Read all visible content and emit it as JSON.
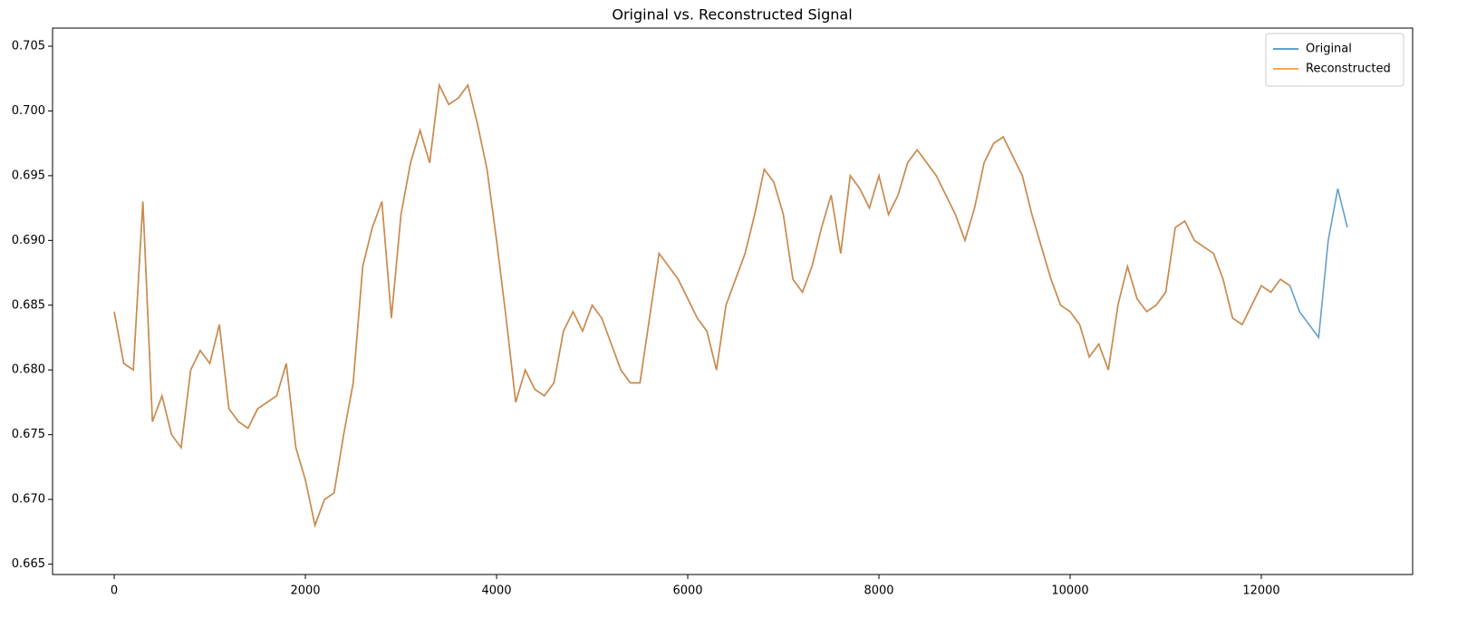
{
  "chart_data": {
    "type": "line",
    "title": "Original vs. Reconstructed Signal",
    "x": [
      0,
      100,
      200,
      300,
      400,
      500,
      600,
      700,
      800,
      900,
      1000,
      1100,
      1200,
      1300,
      1400,
      1500,
      1600,
      1700,
      1800,
      1900,
      2000,
      2100,
      2200,
      2300,
      2400,
      2500,
      2600,
      2700,
      2800,
      2900,
      3000,
      3100,
      3200,
      3300,
      3400,
      3500,
      3600,
      3700,
      3800,
      3900,
      4000,
      4100,
      4200,
      4300,
      4400,
      4500,
      4600,
      4700,
      4800,
      4900,
      5000,
      5100,
      5200,
      5300,
      5400,
      5500,
      5600,
      5700,
      5800,
      5900,
      6000,
      6100,
      6200,
      6300,
      6400,
      6500,
      6600,
      6700,
      6800,
      6900,
      7000,
      7100,
      7200,
      7300,
      7400,
      7500,
      7600,
      7700,
      7800,
      7900,
      8000,
      8100,
      8200,
      8300,
      8400,
      8500,
      8600,
      8700,
      8800,
      8900,
      9000,
      9100,
      9200,
      9300,
      9400,
      9500,
      9600,
      9700,
      9800,
      9900,
      10000,
      10100,
      10200,
      10300,
      10400,
      10500,
      10600,
      10700,
      10800,
      10900,
      11000,
      11100,
      11200,
      11300,
      11400,
      11500,
      11600,
      11700,
      11800,
      11900,
      12000,
      12100,
      12200,
      12300,
      12400,
      12500,
      12600,
      12700,
      12800,
      12900
    ],
    "series": [
      {
        "name": "Original",
        "color": "#1f77b4",
        "values": [
          0.6845,
          0.6805,
          0.68,
          0.693,
          0.676,
          0.678,
          0.675,
          0.674,
          0.68,
          0.6815,
          0.6805,
          0.6835,
          0.677,
          0.676,
          0.6755,
          0.677,
          0.6775,
          0.678,
          0.6805,
          0.674,
          0.6715,
          0.668,
          0.67,
          0.6705,
          0.675,
          0.679,
          0.688,
          0.691,
          0.693,
          0.684,
          0.692,
          0.696,
          0.6985,
          0.696,
          0.702,
          0.7005,
          0.701,
          0.702,
          0.699,
          0.6955,
          0.69,
          0.684,
          0.6775,
          0.68,
          0.6785,
          0.678,
          0.679,
          0.683,
          0.6845,
          0.683,
          0.685,
          0.684,
          0.682,
          0.68,
          0.679,
          0.679,
          0.684,
          0.689,
          0.688,
          0.687,
          0.6855,
          0.684,
          0.683,
          0.68,
          0.685,
          0.687,
          0.689,
          0.692,
          0.6955,
          0.6945,
          0.692,
          0.687,
          0.686,
          0.688,
          0.691,
          0.6935,
          0.689,
          0.695,
          0.694,
          0.6925,
          0.695,
          0.692,
          0.6935,
          0.696,
          0.697,
          0.696,
          0.695,
          0.6935,
          0.692,
          0.69,
          0.6925,
          0.696,
          0.6975,
          0.698,
          0.6965,
          0.695,
          0.692,
          0.6895,
          0.687,
          0.685,
          0.6845,
          0.6835,
          0.681,
          0.682,
          0.68,
          0.685,
          0.688,
          0.6855,
          0.6845,
          0.685,
          0.686,
          0.691,
          0.6915,
          0.69,
          0.6895,
          0.689,
          0.687,
          0.684,
          0.6835,
          0.685,
          0.6865,
          0.686,
          0.687,
          0.6865,
          0.6845,
          0.6835,
          0.6825,
          0.69,
          0.694,
          0.691
        ]
      },
      {
        "name": "Reconstructed",
        "color": "#ff7f0e",
        "values": [
          0.6845,
          0.6805,
          0.68,
          0.693,
          0.676,
          0.678,
          0.675,
          0.674,
          0.68,
          0.6815,
          0.6805,
          0.6835,
          0.677,
          0.676,
          0.6755,
          0.677,
          0.6775,
          0.678,
          0.6805,
          0.674,
          0.6715,
          0.668,
          0.67,
          0.6705,
          0.675,
          0.679,
          0.688,
          0.691,
          0.693,
          0.684,
          0.692,
          0.696,
          0.6985,
          0.696,
          0.702,
          0.7005,
          0.701,
          0.702,
          0.699,
          0.6955,
          0.69,
          0.684,
          0.6775,
          0.68,
          0.6785,
          0.678,
          0.679,
          0.683,
          0.6845,
          0.683,
          0.685,
          0.684,
          0.682,
          0.68,
          0.679,
          0.679,
          0.684,
          0.689,
          0.688,
          0.687,
          0.6855,
          0.684,
          0.683,
          0.68,
          0.685,
          0.687,
          0.689,
          0.692,
          0.6955,
          0.6945,
          0.692,
          0.687,
          0.686,
          0.688,
          0.691,
          0.6935,
          0.689,
          0.695,
          0.694,
          0.6925,
          0.695,
          0.692,
          0.6935,
          0.696,
          0.697,
          0.696,
          0.695,
          0.6935,
          0.692,
          0.69,
          0.6925,
          0.696,
          0.6975,
          0.698,
          0.6965,
          0.695,
          0.692,
          0.6895,
          0.687,
          0.685,
          0.6845,
          0.6835,
          0.681,
          0.682,
          0.68,
          0.685,
          0.688,
          0.6855,
          0.6845,
          0.685,
          0.686,
          0.691,
          0.6915,
          0.69,
          0.6895,
          0.689,
          0.687,
          0.684,
          0.6835,
          0.685,
          0.6865,
          0.686,
          0.687,
          0.6865,
          null,
          null,
          null,
          null,
          null,
          null
        ]
      }
    ],
    "xlim": [
      -645,
      13583
    ],
    "xticks": [
      0,
      2000,
      4000,
      6000,
      8000,
      10000,
      12000
    ],
    "ylim": [
      0.6642,
      0.7064
    ],
    "yticks": [
      0.665,
      {
        "value": 0.67,
        "label": "0.670"
      },
      0.675,
      {
        "value": 0.68,
        "label": "0.680"
      },
      0.685,
      {
        "value": 0.69,
        "label": "0.690"
      },
      0.695,
      {
        "value": 0.7,
        "label": "0.700"
      },
      0.705
    ],
    "legend": "upper right"
  }
}
